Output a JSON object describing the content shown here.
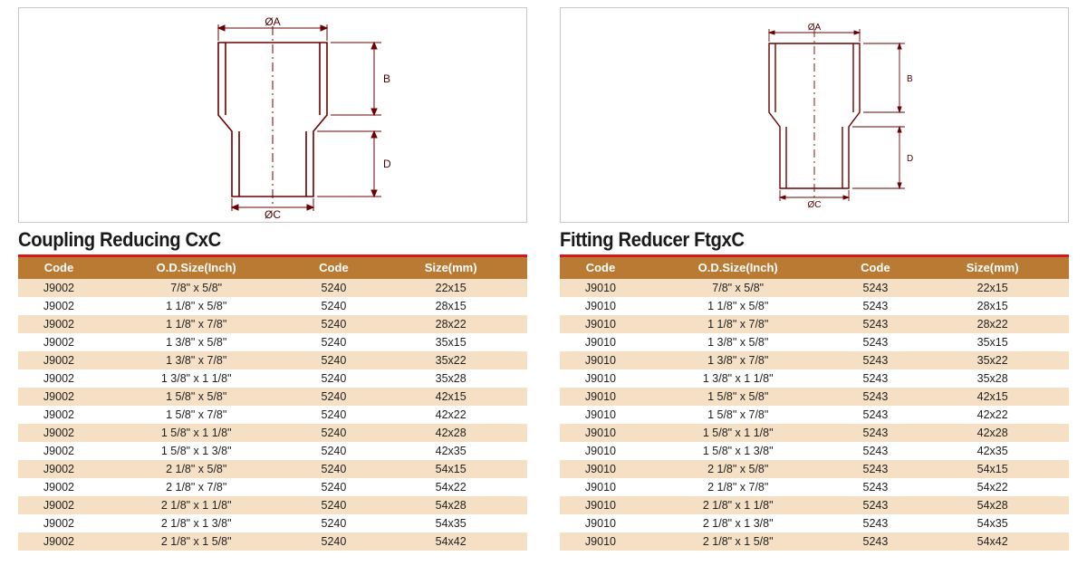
{
  "left": {
    "title": "Coupling Reducing CxC",
    "diagram_labels": {
      "top": "ØA",
      "bottom": "ØC",
      "rightTop": "B",
      "rightBottom": "D"
    },
    "columns": [
      "Code",
      "O.D.Size(Inch)",
      "Code",
      "Size(mm)"
    ],
    "rows": [
      [
        "J9002",
        "7/8\" x 5/8\"",
        "5240",
        "22x15"
      ],
      [
        "J9002",
        "1 1/8\" x 5/8\"",
        "5240",
        "28x15"
      ],
      [
        "J9002",
        "1 1/8\" x 7/8\"",
        "5240",
        "28x22"
      ],
      [
        "J9002",
        "1 3/8\" x 5/8\"",
        "5240",
        "35x15"
      ],
      [
        "J9002",
        "1 3/8\" x 7/8\"",
        "5240",
        "35x22"
      ],
      [
        "J9002",
        "1 3/8\" x 1 1/8\"",
        "5240",
        "35x28"
      ],
      [
        "J9002",
        "1 5/8\" x 5/8\"",
        "5240",
        "42x15"
      ],
      [
        "J9002",
        "1 5/8\" x 7/8\"",
        "5240",
        "42x22"
      ],
      [
        "J9002",
        "1 5/8\" x 1 1/8\"",
        "5240",
        "42x28"
      ],
      [
        "J9002",
        "1 5/8\" x 1 3/8\"",
        "5240",
        "42x35"
      ],
      [
        "J9002",
        "2 1/8\" x 5/8\"",
        "5240",
        "54x15"
      ],
      [
        "J9002",
        "2 1/8\" x 7/8\"",
        "5240",
        "54x22"
      ],
      [
        "J9002",
        "2 1/8\" x 1 1/8\"",
        "5240",
        "54x28"
      ],
      [
        "J9002",
        "2 1/8\" x 1 3/8\"",
        "5240",
        "54x35"
      ],
      [
        "J9002",
        "2 1/8\" x 1 5/8\"",
        "5240",
        "54x42"
      ]
    ]
  },
  "right": {
    "title": "Fitting Reducer FtgxC",
    "diagram_labels": {
      "top": "ØA",
      "bottom": "ØC",
      "rightTop": "B",
      "rightBottom": "D"
    },
    "columns": [
      "Code",
      "O.D.Size(Inch)",
      "Code",
      "Size(mm)"
    ],
    "rows": [
      [
        "J9010",
        "7/8\" x 5/8\"",
        "5243",
        "22x15"
      ],
      [
        "J9010",
        "1 1/8\" x 5/8\"",
        "5243",
        "28x15"
      ],
      [
        "J9010",
        "1 1/8\" x 7/8\"",
        "5243",
        "28x22"
      ],
      [
        "J9010",
        "1 3/8\" x 5/8\"",
        "5243",
        "35x15"
      ],
      [
        "J9010",
        "1 3/8\" x 7/8\"",
        "5243",
        "35x22"
      ],
      [
        "J9010",
        "1 3/8\" x 1 1/8\"",
        "5243",
        "35x28"
      ],
      [
        "J9010",
        "1 5/8\" x 5/8\"",
        "5243",
        "42x15"
      ],
      [
        "J9010",
        "1 5/8\" x 7/8\"",
        "5243",
        "42x22"
      ],
      [
        "J9010",
        "1 5/8\" x 1 1/8\"",
        "5243",
        "42x28"
      ],
      [
        "J9010",
        "1 5/8\" x 1 3/8\"",
        "5243",
        "42x35"
      ],
      [
        "J9010",
        "2 1/8\" x 5/8\"",
        "5243",
        "54x15"
      ],
      [
        "J9010",
        "2 1/8\" x 7/8\"",
        "5243",
        "54x22"
      ],
      [
        "J9010",
        "2 1/8\" x 1 1/8\"",
        "5243",
        "54x28"
      ],
      [
        "J9010",
        "2 1/8\" x 1 3/8\"",
        "5243",
        "54x35"
      ],
      [
        "J9010",
        "2 1/8\" x 1 5/8\"",
        "5243",
        "54x42"
      ]
    ]
  },
  "style": {
    "header_bg": "#b97a34",
    "row_odd_bg": "#f5e0c5",
    "row_even_bg": "#ffffff",
    "redbar": "#d8171a",
    "diagram_border": "#c8c8c8",
    "diagram_stroke": "#6b0000",
    "font": "Arial",
    "cell_fontsize": 12.5,
    "header_fontsize": 13,
    "title_fontsize": 22
  }
}
